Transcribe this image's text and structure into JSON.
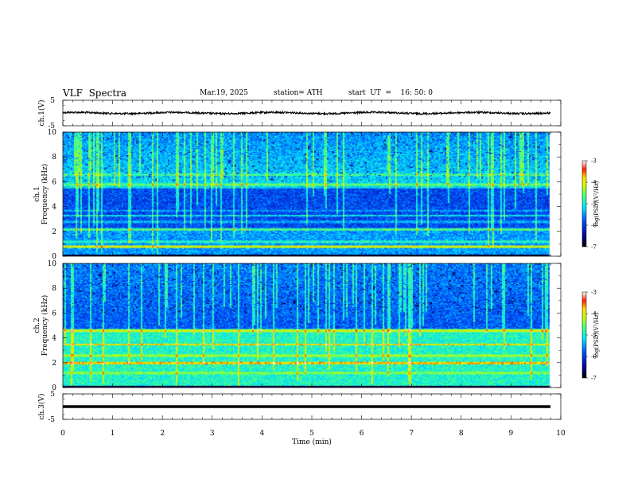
{
  "header": {
    "title": "VLF  Spectra",
    "date": "Mar.19, 2025",
    "station": "station= ATH",
    "start": "start  UT  =    16: 50: 0"
  },
  "chart_data": [
    {
      "type": "line",
      "panel": "ch1-waveform",
      "ylabel": "ch.1(V)",
      "yticks": [
        "5",
        "-5"
      ],
      "ylim": [
        -5,
        5
      ],
      "baseline": 0,
      "xlim": [
        0,
        10
      ]
    },
    {
      "type": "heatmap",
      "panel": "ch1-spectrogram",
      "ylabel_line1": "ch.1",
      "ylabel_line2": "Frequency (kHz)",
      "yticks": [
        "0",
        "2",
        "4",
        "6",
        "8",
        "10"
      ],
      "ylim": [
        0,
        10
      ],
      "xlim": [
        0,
        10
      ],
      "data_end_min": 9.8,
      "colorbar": {
        "label": "log(PSD)(V²/Hz)",
        "ticks": [
          "-3",
          "-4",
          "-5",
          "-6",
          "-7"
        ],
        "range": [
          -7,
          -3
        ]
      }
    },
    {
      "type": "heatmap",
      "panel": "ch2-spectrogram",
      "ylabel_line1": "ch.2",
      "ylabel_line2": "Frequency (kHz)",
      "yticks": [
        "0",
        "2",
        "4",
        "6",
        "8",
        "10"
      ],
      "ylim": [
        0,
        10
      ],
      "xlim": [
        0,
        10
      ],
      "data_end_min": 9.8,
      "colorbar": {
        "label": "log(PSD)(V²/Hz)",
        "ticks": [
          "-3",
          "-4",
          "-5",
          "-6",
          "-7"
        ],
        "range": [
          -7,
          -3
        ]
      }
    },
    {
      "type": "line",
      "panel": "ch3-waveform",
      "ylabel": "ch.3(V)",
      "yticks": [
        "5",
        "-5"
      ],
      "ylim": [
        -5,
        5
      ],
      "baseline": 0,
      "xlim": [
        0,
        10
      ]
    }
  ],
  "xaxis": {
    "label": "Time  (min)",
    "ticks": [
      "0",
      "1",
      "2",
      "3",
      "4",
      "5",
      "6",
      "7",
      "8",
      "9",
      "10"
    ],
    "range": [
      0,
      10
    ]
  }
}
